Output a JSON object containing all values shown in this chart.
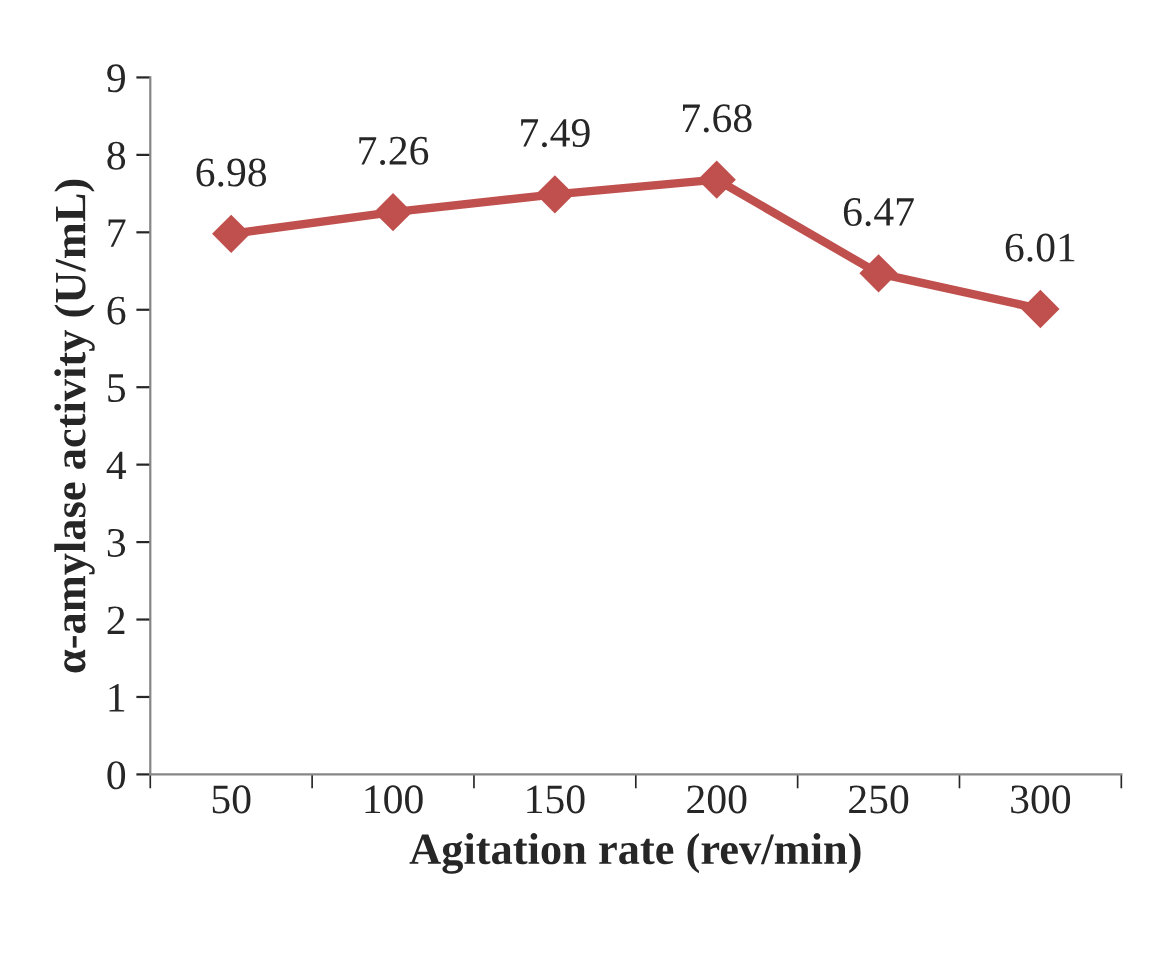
{
  "chart_data": {
    "type": "line",
    "xlabel": "Agitation rate (rev/min)",
    "ylabel": "α-amylase activity (U/mL)",
    "categories": [
      "50",
      "100",
      "150",
      "200",
      "250",
      "300"
    ],
    "series": [
      {
        "color": "#c0504d",
        "values": [
          6.98,
          7.26,
          7.49,
          7.68,
          6.47,
          6.01
        ]
      }
    ],
    "ylim": [
      0,
      9
    ],
    "yticks": [
      0,
      1,
      2,
      3,
      4,
      5,
      6,
      7,
      8,
      9
    ],
    "marker": "diamond",
    "line_style": "solid",
    "data_labels": true,
    "grid": false,
    "legend": false
  }
}
